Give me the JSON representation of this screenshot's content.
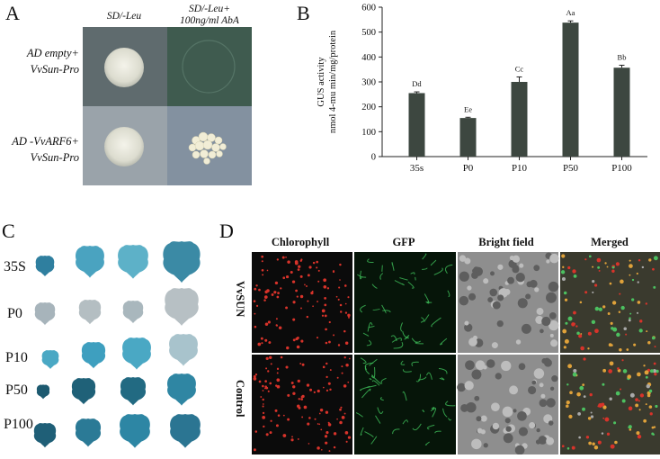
{
  "panels": {
    "A": {
      "letter": "A",
      "col_headers": [
        "SD/-Leu",
        "SD/-Leu+",
        "100ng/ml AbA"
      ],
      "row_labels": [
        {
          "line1": "AD empty+",
          "line2": "VvSun-Pro"
        },
        {
          "line1": "AD -VvARF6+",
          "line2": "VvSun-Pro"
        }
      ]
    },
    "B": {
      "letter": "B"
    },
    "C": {
      "letter": "C",
      "row_labels": [
        "35S",
        "P0",
        "P10",
        "P50",
        "P100"
      ]
    },
    "D": {
      "letter": "D",
      "col_headers": [
        "Chlorophyll",
        "GFP",
        "Bright field",
        "Merged"
      ],
      "row_labels": [
        "VvSUN",
        "Control"
      ]
    }
  },
  "chart_data": {
    "type": "bar",
    "categories": [
      "35s",
      "P0",
      "P10",
      "P50",
      "P100"
    ],
    "values": [
      255,
      155,
      300,
      538,
      357
    ],
    "errors": [
      5,
      3,
      20,
      7,
      10
    ],
    "bar_labels": [
      "Dd",
      "Ee",
      "Cc",
      "Aa",
      "Bb"
    ],
    "ylabel_line1": "GUS activity",
    "ylabel_line2": "nmol 4-mu min/mg/protein",
    "ylim": [
      0,
      600
    ],
    "yticks": [
      0,
      100,
      200,
      300,
      400,
      500,
      600
    ],
    "bar_color": "#3d4740"
  }
}
